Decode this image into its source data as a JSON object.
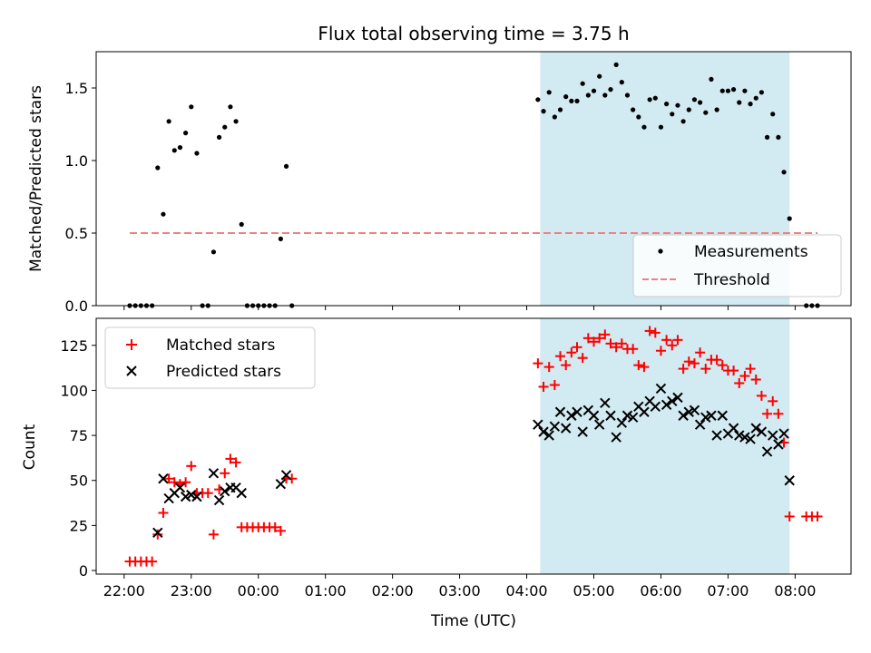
{
  "title": "Flux total observing time = 3.75 h",
  "chart_data": [
    {
      "type": "scatter",
      "ylabel": "Matched/Predicted stars",
      "xlabel": "",
      "ylim": [
        0,
        1.75
      ],
      "yticks": [
        0.0,
        0.5,
        1.0,
        1.5
      ],
      "ytick_labels": [
        "0.0",
        "0.5",
        "1.0",
        "1.5"
      ],
      "xlim": [
        "21:35",
        "08:50"
      ],
      "xticks": [
        "22:00",
        "23:00",
        "00:00",
        "01:00",
        "02:00",
        "03:00",
        "04:00",
        "05:00",
        "06:00",
        "07:00",
        "08:00"
      ],
      "shaded_span": {
        "start": "04:12",
        "end": "07:55",
        "color": "#add8e6"
      },
      "legend": {
        "position": "lower right",
        "entries": [
          "Measurements",
          "Threshold"
        ]
      },
      "threshold": {
        "name": "Threshold",
        "value": 0.5,
        "x_range": [
          "22:05",
          "08:20"
        ],
        "color": "#f08080",
        "style": "dashed"
      },
      "series": [
        {
          "name": "Measurements",
          "marker": "dot",
          "color": "#000000",
          "points": [
            [
              "22:05",
              0
            ],
            [
              "22:10",
              0
            ],
            [
              "22:15",
              0
            ],
            [
              "22:20",
              0
            ],
            [
              "22:25",
              0
            ],
            [
              "22:30",
              0.95
            ],
            [
              "22:35",
              0.63
            ],
            [
              "22:40",
              1.27
            ],
            [
              "22:45",
              1.07
            ],
            [
              "22:50",
              1.09
            ],
            [
              "22:55",
              1.19
            ],
            [
              "23:00",
              1.37
            ],
            [
              "23:05",
              1.05
            ],
            [
              "23:10",
              0
            ],
            [
              "23:15",
              0
            ],
            [
              "23:20",
              0.37
            ],
            [
              "23:25",
              1.16
            ],
            [
              "23:30",
              1.23
            ],
            [
              "23:35",
              1.37
            ],
            [
              "23:40",
              1.27
            ],
            [
              "23:45",
              0.56
            ],
            [
              "23:50",
              0
            ],
            [
              "23:55",
              0
            ],
            [
              "00:00",
              0
            ],
            [
              "00:05",
              0
            ],
            [
              "00:10",
              0
            ],
            [
              "00:15",
              0
            ],
            [
              "00:20",
              0.46
            ],
            [
              "00:25",
              0.96
            ],
            [
              "00:30",
              0
            ],
            [
              "04:10",
              1.42
            ],
            [
              "04:15",
              1.34
            ],
            [
              "04:20",
              1.47
            ],
            [
              "04:25",
              1.3
            ],
            [
              "04:30",
              1.35
            ],
            [
              "04:35",
              1.44
            ],
            [
              "04:40",
              1.41
            ],
            [
              "04:45",
              1.41
            ],
            [
              "04:50",
              1.53
            ],
            [
              "04:55",
              1.45
            ],
            [
              "05:00",
              1.48
            ],
            [
              "05:05",
              1.58
            ],
            [
              "05:10",
              1.45
            ],
            [
              "05:15",
              1.49
            ],
            [
              "05:20",
              1.66
            ],
            [
              "05:25",
              1.54
            ],
            [
              "05:30",
              1.45
            ],
            [
              "05:35",
              1.35
            ],
            [
              "05:40",
              1.3
            ],
            [
              "05:45",
              1.23
            ],
            [
              "05:50",
              1.42
            ],
            [
              "05:55",
              1.43
            ],
            [
              "06:00",
              1.23
            ],
            [
              "06:05",
              1.39
            ],
            [
              "06:10",
              1.32
            ],
            [
              "06:15",
              1.38
            ],
            [
              "06:20",
              1.27
            ],
            [
              "06:25",
              1.35
            ],
            [
              "06:30",
              1.42
            ],
            [
              "06:35",
              1.4
            ],
            [
              "06:40",
              1.33
            ],
            [
              "06:45",
              1.56
            ],
            [
              "06:50",
              1.35
            ],
            [
              "06:55",
              1.48
            ],
            [
              "07:00",
              1.48
            ],
            [
              "07:05",
              1.49
            ],
            [
              "07:10",
              1.4
            ],
            [
              "07:15",
              1.48
            ],
            [
              "07:20",
              1.39
            ],
            [
              "07:25",
              1.43
            ],
            [
              "07:30",
              1.47
            ],
            [
              "07:35",
              1.16
            ],
            [
              "07:40",
              1.32
            ],
            [
              "07:45",
              1.16
            ],
            [
              "07:50",
              0.92
            ],
            [
              "07:55",
              0.6
            ],
            [
              "08:10",
              0
            ],
            [
              "08:15",
              0
            ],
            [
              "08:20",
              0
            ]
          ]
        }
      ]
    },
    {
      "type": "scatter",
      "ylabel": "Count",
      "xlabel": "Time (UTC)",
      "ylim": [
        -2,
        140
      ],
      "yticks": [
        0,
        25,
        50,
        75,
        100,
        125
      ],
      "ytick_labels": [
        "0",
        "25",
        "50",
        "75",
        "100",
        "125"
      ],
      "xlim": [
        "21:35",
        "08:50"
      ],
      "xticks": [
        "22:00",
        "23:00",
        "00:00",
        "01:00",
        "02:00",
        "03:00",
        "04:00",
        "05:00",
        "06:00",
        "07:00",
        "08:00"
      ],
      "xtick_labels": [
        "22:00",
        "23:00",
        "00:00",
        "01:00",
        "02:00",
        "03:00",
        "04:00",
        "05:00",
        "06:00",
        "07:00",
        "08:00"
      ],
      "shaded_span": {
        "start": "04:12",
        "end": "07:55",
        "color": "#add8e6"
      },
      "legend": {
        "position": "upper left",
        "entries": [
          "Matched stars",
          "Predicted stars"
        ]
      },
      "series": [
        {
          "name": "Matched stars",
          "marker": "plus",
          "color": "#ff0000",
          "points": [
            [
              "22:05",
              5
            ],
            [
              "22:10",
              5
            ],
            [
              "22:15",
              5
            ],
            [
              "22:20",
              5
            ],
            [
              "22:25",
              5
            ],
            [
              "22:30",
              20
            ],
            [
              "22:35",
              32
            ],
            [
              "22:40",
              51
            ],
            [
              "22:45",
              49
            ],
            [
              "22:50",
              48
            ],
            [
              "22:55",
              49
            ],
            [
              "23:00",
              58
            ],
            [
              "23:05",
              43
            ],
            [
              "23:10",
              43
            ],
            [
              "23:15",
              43
            ],
            [
              "23:20",
              20
            ],
            [
              "23:25",
              45
            ],
            [
              "23:30",
              54
            ],
            [
              "23:35",
              62
            ],
            [
              "23:40",
              60
            ],
            [
              "23:45",
              24
            ],
            [
              "23:50",
              24
            ],
            [
              "23:55",
              24
            ],
            [
              "00:00",
              24
            ],
            [
              "00:05",
              24
            ],
            [
              "00:10",
              24
            ],
            [
              "00:15",
              24
            ],
            [
              "00:20",
              22
            ],
            [
              "00:25",
              51
            ],
            [
              "00:30",
              51
            ],
            [
              "04:10",
              115
            ],
            [
              "04:15",
              102
            ],
            [
              "04:20",
              113
            ],
            [
              "04:25",
              103
            ],
            [
              "04:30",
              119
            ],
            [
              "04:35",
              114
            ],
            [
              "04:40",
              121
            ],
            [
              "04:45",
              124
            ],
            [
              "04:50",
              118
            ],
            [
              "04:55",
              129
            ],
            [
              "05:00",
              127
            ],
            [
              "05:05",
              129
            ],
            [
              "05:10",
              131
            ],
            [
              "05:15",
              126
            ],
            [
              "05:20",
              124
            ],
            [
              "05:25",
              126
            ],
            [
              "05:30",
              123
            ],
            [
              "05:35",
              123
            ],
            [
              "05:40",
              114
            ],
            [
              "05:45",
              113
            ],
            [
              "05:50",
              133
            ],
            [
              "05:55",
              132
            ],
            [
              "06:00",
              122
            ],
            [
              "06:05",
              128
            ],
            [
              "06:10",
              125
            ],
            [
              "06:15",
              128
            ],
            [
              "06:20",
              112
            ],
            [
              "06:25",
              116
            ],
            [
              "06:30",
              115
            ],
            [
              "06:35",
              121
            ],
            [
              "06:40",
              112
            ],
            [
              "06:45",
              117
            ],
            [
              "06:50",
              117
            ],
            [
              "06:55",
              114
            ],
            [
              "07:00",
              111
            ],
            [
              "07:05",
              111
            ],
            [
              "07:10",
              104
            ],
            [
              "07:15",
              108
            ],
            [
              "07:20",
              112
            ],
            [
              "07:25",
              106
            ],
            [
              "07:30",
              97
            ],
            [
              "07:35",
              87
            ],
            [
              "07:40",
              94
            ],
            [
              "07:45",
              87
            ],
            [
              "07:50",
              71
            ],
            [
              "07:55",
              30
            ],
            [
              "08:10",
              30
            ],
            [
              "08:15",
              30
            ],
            [
              "08:20",
              30
            ]
          ]
        },
        {
          "name": "Predicted stars",
          "marker": "x",
          "color": "#000000",
          "points": [
            [
              "22:30",
              21
            ],
            [
              "22:35",
              51
            ],
            [
              "22:40",
              40
            ],
            [
              "22:45",
              43
            ],
            [
              "22:50",
              46
            ],
            [
              "22:55",
              41
            ],
            [
              "23:00",
              42
            ],
            [
              "23:05",
              41
            ],
            [
              "23:20",
              54
            ],
            [
              "23:25",
              39
            ],
            [
              "23:30",
              44
            ],
            [
              "23:35",
              46
            ],
            [
              "23:40",
              46
            ],
            [
              "23:45",
              43
            ],
            [
              "00:20",
              48
            ],
            [
              "00:25",
              53
            ],
            [
              "04:10",
              81
            ],
            [
              "04:15",
              77
            ],
            [
              "04:20",
              75
            ],
            [
              "04:25",
              80
            ],
            [
              "04:30",
              88
            ],
            [
              "04:35",
              79
            ],
            [
              "04:40",
              86
            ],
            [
              "04:45",
              88
            ],
            [
              "04:50",
              77
            ],
            [
              "04:55",
              89
            ],
            [
              "05:00",
              86
            ],
            [
              "05:05",
              81
            ],
            [
              "05:10",
              93
            ],
            [
              "05:15",
              86
            ],
            [
              "05:20",
              74
            ],
            [
              "05:25",
              82
            ],
            [
              "05:30",
              86
            ],
            [
              "05:35",
              85
            ],
            [
              "05:40",
              91
            ],
            [
              "05:45",
              88
            ],
            [
              "05:50",
              94
            ],
            [
              "05:55",
              91
            ],
            [
              "06:00",
              101
            ],
            [
              "06:05",
              92
            ],
            [
              "06:10",
              94
            ],
            [
              "06:15",
              96
            ],
            [
              "06:20",
              86
            ],
            [
              "06:25",
              88
            ],
            [
              "06:30",
              89
            ],
            [
              "06:35",
              81
            ],
            [
              "06:40",
              85
            ],
            [
              "06:45",
              86
            ],
            [
              "06:50",
              75
            ],
            [
              "06:55",
              86
            ],
            [
              "07:00",
              76
            ],
            [
              "07:05",
              79
            ],
            [
              "07:10",
              75
            ],
            [
              "07:15",
              74
            ],
            [
              "07:20",
              73
            ],
            [
              "07:25",
              79
            ],
            [
              "07:30",
              77
            ],
            [
              "07:35",
              66
            ],
            [
              "07:40",
              75
            ],
            [
              "07:45",
              70
            ],
            [
              "07:50",
              76
            ],
            [
              "07:55",
              50
            ]
          ]
        }
      ]
    }
  ]
}
